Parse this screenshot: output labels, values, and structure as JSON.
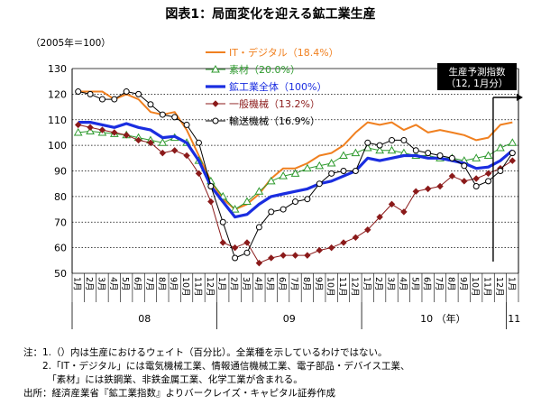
{
  "chart_data": {
    "type": "line",
    "title": "図表1：局面変化を迎える鉱工業生産",
    "unit_label": "（2005年＝100）",
    "ylim": [
      50,
      130
    ],
    "yticks": [
      50,
      60,
      70,
      80,
      90,
      100,
      110,
      120,
      130
    ],
    "x_tick_labels": [
      "1月",
      "2月",
      "3月",
      "4月",
      "5月",
      "6月",
      "7月",
      "8月",
      "9月",
      "10月",
      "11月",
      "12月",
      "1月",
      "2月",
      "3月",
      "4月",
      "5月",
      "6月",
      "7月",
      "8月",
      "9月",
      "10月",
      "11月",
      "12月",
      "1月",
      "2月",
      "3月",
      "4月",
      "5月",
      "6月",
      "7月",
      "8月",
      "9月",
      "10月",
      "11月",
      "12月",
      "1月"
    ],
    "year_labels": [
      "08",
      "09",
      "10 （年）",
      "11"
    ],
    "grid": true,
    "legend_position": "top-center",
    "annotation": {
      "lines": [
        "生産予測指数",
        "（12, 1月分）"
      ],
      "points_to": "12月"
    },
    "series": [
      {
        "name": "IT・デジタル（18.4%）",
        "color": "#f08020",
        "marker": "none",
        "width": 2,
        "values": [
          121,
          121,
          121,
          118,
          120,
          118,
          113,
          112,
          113,
          106,
          96,
          86,
          79,
          75,
          77,
          81,
          87,
          91,
          91,
          93,
          96,
          97,
          100,
          105,
          109,
          108,
          109,
          106,
          108,
          105,
          106,
          105,
          104,
          102,
          103,
          108,
          109
        ]
      },
      {
        "name": "素材（20.0%）",
        "color": "#2e9a2e",
        "marker": "triangle",
        "width": 1,
        "values": [
          105,
          105.5,
          105,
          104.5,
          104,
          103,
          102,
          101,
          103,
          101,
          94,
          86,
          80,
          75,
          78,
          82,
          86,
          88,
          89,
          91,
          92,
          93,
          96,
          97,
          99,
          98,
          98,
          97,
          96,
          96,
          95,
          95,
          94,
          95,
          96,
          99,
          101
        ]
      },
      {
        "name": "鉱工業全体（100%）",
        "color": "#1a2de0",
        "marker": "none",
        "width": 3.2,
        "values": [
          109,
          109,
          108,
          107,
          108.5,
          107,
          106,
          103,
          103.5,
          101,
          94,
          84,
          78,
          72,
          73,
          77,
          80,
          81,
          82,
          83,
          85,
          86,
          88,
          90,
          95,
          94,
          95,
          96,
          96,
          95,
          95,
          94,
          93,
          91,
          91.5,
          94,
          98
        ]
      },
      {
        "name": "一般機械（13.2%）",
        "color": "#8b1a1a",
        "marker": "diamond",
        "width": 1,
        "values": [
          108,
          107,
          106,
          105,
          104,
          102,
          101,
          97,
          98,
          96,
          89,
          78,
          62,
          60,
          62,
          54,
          56,
          57,
          57,
          57,
          59,
          60,
          62,
          64,
          67,
          72,
          77,
          74,
          82,
          83,
          84,
          88,
          86,
          87,
          89,
          91,
          94
        ]
      },
      {
        "name": "輸送機械（16.9%）",
        "color": "#000000",
        "marker": "circle",
        "width": 1,
        "values": [
          121,
          120,
          118,
          118,
          121,
          120,
          116,
          112,
          111,
          108,
          101,
          84,
          70,
          56,
          58,
          68,
          74,
          75,
          78,
          79,
          85,
          89,
          90,
          90,
          101,
          100,
          102,
          102,
          98,
          97,
          96,
          95,
          92,
          84,
          86,
          90,
          97
        ]
      }
    ]
  },
  "notes": [
    "注：1.（）内は生産におけるウェイト（百分比）。全業種を示しているわけではない。",
    "　　2.「IT・デジタル」には電気機械工業、情報通信機械工業、電子部品・デバイス工業、",
    "　　　「素材」には鉄鋼業、非鉄金属工業、化学工業が含まれる。",
    "出所：経済産業省『鉱工業指数』よりバークレイズ・キャピタル証券作成"
  ]
}
